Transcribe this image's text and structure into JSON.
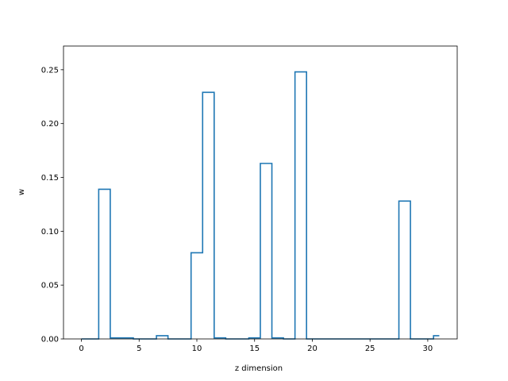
{
  "chart_data": {
    "type": "step",
    "title": "",
    "xlabel": "z dimension",
    "ylabel": "w",
    "xlim": [
      -1.55,
      32.55
    ],
    "ylim": [
      0,
      0.272
    ],
    "xticks": [
      0,
      5,
      10,
      15,
      20,
      25,
      30
    ],
    "yticks": [
      0.0,
      0.05,
      0.1,
      0.15,
      0.2,
      0.25
    ],
    "ytick_labels": [
      "0.00",
      "0.05",
      "0.10",
      "0.15",
      "0.20",
      "0.25"
    ],
    "grid": false,
    "legend": "none",
    "series": [
      {
        "color": "#1f77b4",
        "x": [
          0,
          1,
          2,
          3,
          4,
          5,
          6,
          7,
          8,
          9,
          10,
          11,
          12,
          13,
          14,
          15,
          16,
          17,
          18,
          19,
          20,
          21,
          22,
          23,
          24,
          25,
          26,
          27,
          28,
          29,
          30,
          31
        ],
        "values": [
          0.0,
          0.0,
          0.139,
          0.001,
          0.001,
          0.0,
          0.0,
          0.003,
          0.0,
          0.0,
          0.08,
          0.229,
          0.001,
          0.0,
          0.0,
          0.001,
          0.163,
          0.001,
          0.0,
          0.248,
          0.0,
          0.0,
          0.0,
          0.0,
          0.0,
          0.0,
          0.0,
          0.0,
          0.128,
          0.0,
          0.0,
          0.003
        ]
      }
    ]
  }
}
